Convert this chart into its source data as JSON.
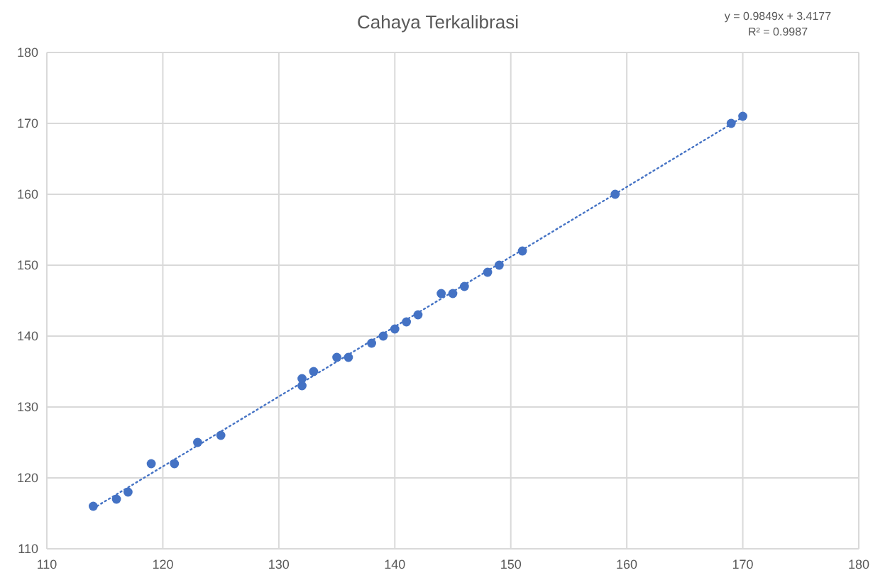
{
  "chart_data": {
    "type": "scatter",
    "title": "Cahaya Terkalibrasi",
    "annotations": [
      "y = 0.9849x + 3.4177",
      "R² = 0.9987"
    ],
    "x": [
      114,
      116,
      117,
      119,
      121,
      123,
      125,
      132,
      132,
      133,
      135,
      136,
      138,
      139,
      140,
      141,
      142,
      144,
      145,
      146,
      148,
      149,
      151,
      159,
      169,
      170
    ],
    "series": [
      {
        "color": "#4472c4",
        "marker": "circle",
        "values": [
          116,
          117,
          118,
          122,
          122,
          125,
          126,
          133,
          134,
          135,
          137,
          137,
          139,
          140,
          141,
          142,
          143,
          146,
          146,
          147,
          149,
          150,
          152,
          160,
          170,
          171
        ]
      },
      {
        "type": "line",
        "color": "#4472c4",
        "line_style": "dotted",
        "marker": "none",
        "x": [
          114,
          170
        ],
        "values": [
          115.7,
          170.9
        ]
      }
    ],
    "xlim": [
      110,
      180
    ],
    "xticks": [
      110,
      120,
      130,
      140,
      150,
      160,
      170,
      180
    ],
    "ylim": [
      110,
      180
    ],
    "yticks": [
      110,
      120,
      130,
      140,
      150,
      160,
      170,
      180
    ],
    "grid": true
  }
}
